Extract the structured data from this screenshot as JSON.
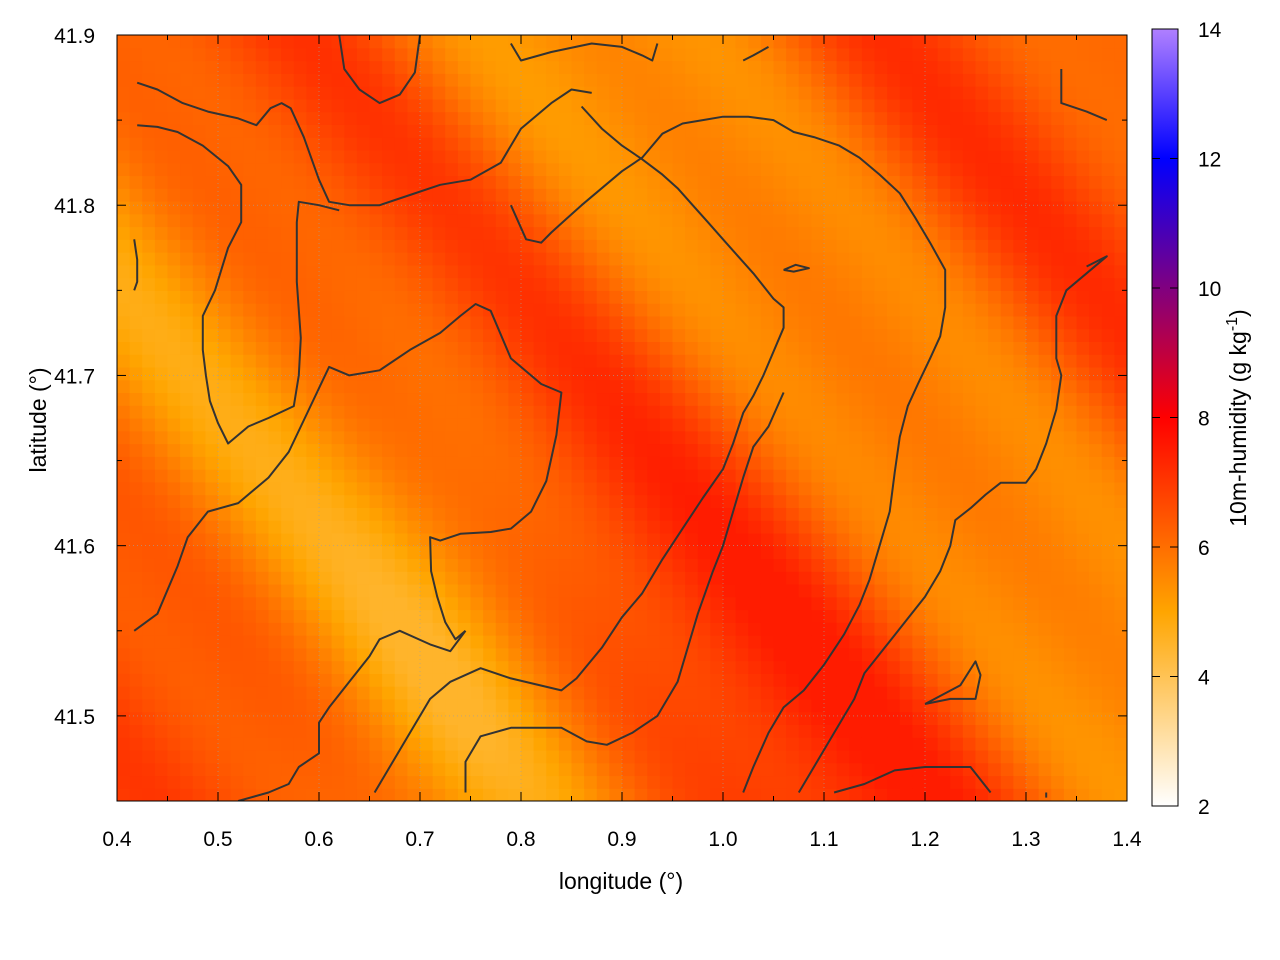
{
  "chart_data": {
    "type": "heatmap",
    "title": "",
    "xlabel": "longitude (°)",
    "ylabel": "latitude (°)",
    "xlim": [
      0.4,
      1.4
    ],
    "ylim": [
      41.45,
      41.9
    ],
    "x_ticks": [
      "0.4",
      "0.5",
      "0.6",
      "0.7",
      "0.8",
      "0.9",
      "1.0",
      "1.1",
      "1.2",
      "1.3",
      "1.4"
    ],
    "y_ticks": [
      "41.5",
      "41.6",
      "41.7",
      "41.8",
      "41.9"
    ],
    "x_tick_values": [
      0.4,
      0.5,
      0.6,
      0.7,
      0.8,
      0.9,
      1.0,
      1.1,
      1.2,
      1.3,
      1.4
    ],
    "y_tick_values": [
      41.5,
      41.6,
      41.7,
      41.8,
      41.9
    ],
    "grid": true,
    "colorbar": {
      "label_main": "10m-humidity (g kg",
      "label_sup": "-1",
      "label_end": ")",
      "range": [
        2,
        14
      ],
      "ticks": [
        "2",
        "4",
        "6",
        "8",
        "10",
        "12",
        "14"
      ],
      "tick_values": [
        2,
        4,
        6,
        8,
        10,
        12,
        14
      ],
      "palette": [
        "#ffffff",
        "#ffa500",
        "#ff0000",
        "#800080",
        "#0000ff",
        "#b080ff"
      ],
      "palette_stops": [
        2,
        5,
        8,
        10,
        12,
        14
      ]
    },
    "field": {
      "typical_range": [
        4.5,
        7.5
      ],
      "description_levels": [
        5,
        6,
        7
      ]
    },
    "contours": [
      [
        [
          0.42,
          41.872
        ],
        [
          0.44,
          41.868
        ],
        [
          0.465,
          41.86
        ],
        [
          0.49,
          41.855
        ],
        [
          0.52,
          41.851
        ],
        [
          0.538,
          41.847
        ],
        [
          0.552,
          41.857
        ],
        [
          0.563,
          41.86
        ],
        [
          0.572,
          41.857
        ],
        [
          0.585,
          41.84
        ],
        [
          0.6,
          41.815
        ],
        [
          0.61,
          41.802
        ],
        [
          0.63,
          41.8
        ],
        [
          0.66,
          41.8
        ],
        [
          0.69,
          41.806
        ],
        [
          0.72,
          41.812
        ],
        [
          0.75,
          41.815
        ],
        [
          0.78,
          41.825
        ],
        [
          0.8,
          41.845
        ],
        [
          0.81,
          41.85
        ],
        [
          0.83,
          41.86
        ],
        [
          0.85,
          41.868
        ],
        [
          0.87,
          41.866
        ]
      ],
      [
        [
          0.42,
          41.847
        ],
        [
          0.44,
          41.846
        ],
        [
          0.46,
          41.843
        ],
        [
          0.485,
          41.835
        ],
        [
          0.51,
          41.823
        ],
        [
          0.523,
          41.812
        ],
        [
          0.523,
          41.79
        ],
        [
          0.51,
          41.775
        ],
        [
          0.497,
          41.75
        ],
        [
          0.485,
          41.735
        ],
        [
          0.485,
          41.715
        ],
        [
          0.488,
          41.7
        ],
        [
          0.492,
          41.685
        ],
        [
          0.5,
          41.672
        ],
        [
          0.51,
          41.66
        ],
        [
          0.53,
          41.67
        ],
        [
          0.55,
          41.675
        ],
        [
          0.575,
          41.682
        ],
        [
          0.58,
          41.7
        ],
        [
          0.582,
          41.722
        ],
        [
          0.578,
          41.755
        ],
        [
          0.578,
          41.79
        ],
        [
          0.58,
          41.802
        ],
        [
          0.6,
          41.8
        ],
        [
          0.62,
          41.797
        ]
      ],
      [
        [
          0.417,
          41.78
        ],
        [
          0.42,
          41.768
        ],
        [
          0.42,
          41.755
        ],
        [
          0.417,
          41.75
        ]
      ],
      [
        [
          0.417,
          41.55
        ],
        [
          0.44,
          41.56
        ],
        [
          0.46,
          41.588
        ],
        [
          0.47,
          41.605
        ],
        [
          0.49,
          41.62
        ],
        [
          0.52,
          41.625
        ],
        [
          0.55,
          41.64
        ],
        [
          0.57,
          41.655
        ],
        [
          0.59,
          41.68
        ],
        [
          0.61,
          41.705
        ],
        [
          0.63,
          41.7
        ],
        [
          0.66,
          41.703
        ],
        [
          0.69,
          41.715
        ],
        [
          0.72,
          41.725
        ],
        [
          0.74,
          41.735
        ],
        [
          0.755,
          41.742
        ],
        [
          0.77,
          41.738
        ],
        [
          0.79,
          41.71
        ],
        [
          0.82,
          41.695
        ],
        [
          0.84,
          41.69
        ],
        [
          0.835,
          41.665
        ],
        [
          0.825,
          41.638
        ],
        [
          0.81,
          41.62
        ],
        [
          0.79,
          41.61
        ],
        [
          0.77,
          41.608
        ],
        [
          0.74,
          41.607
        ],
        [
          0.72,
          41.603
        ],
        [
          0.71,
          41.605
        ],
        [
          0.711,
          41.585
        ],
        [
          0.717,
          41.57
        ],
        [
          0.725,
          41.555
        ],
        [
          0.735,
          41.545
        ],
        [
          0.745,
          41.55
        ]
      ],
      [
        [
          0.745,
          41.55
        ],
        [
          0.73,
          41.538
        ],
        [
          0.71,
          41.542
        ],
        [
          0.68,
          41.55
        ],
        [
          0.66,
          41.545
        ],
        [
          0.65,
          41.535
        ],
        [
          0.63,
          41.52
        ],
        [
          0.61,
          41.505
        ],
        [
          0.6,
          41.496
        ],
        [
          0.6,
          41.478
        ],
        [
          0.58,
          41.47
        ],
        [
          0.57,
          41.46
        ],
        [
          0.55,
          41.455
        ],
        [
          0.52,
          41.45
        ]
      ],
      [
        [
          0.655,
          41.455
        ],
        [
          0.67,
          41.47
        ],
        [
          0.69,
          41.49
        ],
        [
          0.71,
          41.51
        ],
        [
          0.73,
          41.52
        ],
        [
          0.76,
          41.528
        ],
        [
          0.79,
          41.522
        ],
        [
          0.84,
          41.515
        ],
        [
          0.855,
          41.522
        ],
        [
          0.88,
          41.54
        ],
        [
          0.9,
          41.558
        ],
        [
          0.92,
          41.572
        ],
        [
          0.94,
          41.592
        ],
        [
          0.96,
          41.61
        ],
        [
          0.98,
          41.628
        ],
        [
          1.0,
          41.645
        ],
        [
          1.01,
          41.66
        ],
        [
          1.02,
          41.678
        ],
        [
          1.03,
          41.688
        ],
        [
          1.04,
          41.7
        ],
        [
          1.05,
          41.714
        ],
        [
          1.06,
          41.728
        ],
        [
          1.06,
          41.74
        ],
        [
          1.05,
          41.745
        ],
        [
          1.03,
          41.76
        ],
        [
          1.015,
          41.77
        ],
        [
          1.0,
          41.78
        ],
        [
          0.985,
          41.79
        ],
        [
          0.97,
          41.8
        ],
        [
          0.955,
          41.81
        ],
        [
          0.94,
          41.818
        ],
        [
          0.92,
          41.827
        ],
        [
          0.9,
          41.835
        ],
        [
          0.88,
          41.845
        ],
        [
          0.86,
          41.858
        ]
      ],
      [
        [
          0.745,
          41.455
        ],
        [
          0.745,
          41.473
        ],
        [
          0.76,
          41.488
        ],
        [
          0.79,
          41.493
        ],
        [
          0.84,
          41.493
        ],
        [
          0.865,
          41.485
        ],
        [
          0.885,
          41.483
        ],
        [
          0.91,
          41.49
        ],
        [
          0.935,
          41.5
        ],
        [
          0.955,
          41.52
        ],
        [
          0.965,
          41.54
        ],
        [
          0.975,
          41.56
        ],
        [
          0.99,
          41.585
        ],
        [
          1.0,
          41.6
        ],
        [
          1.01,
          41.62
        ],
        [
          1.02,
          41.64
        ],
        [
          1.03,
          41.658
        ],
        [
          1.045,
          41.67
        ],
        [
          1.06,
          41.69
        ]
      ],
      [
        [
          1.02,
          41.455
        ],
        [
          1.03,
          41.47
        ],
        [
          1.045,
          41.49
        ],
        [
          1.06,
          41.505
        ],
        [
          1.08,
          41.515
        ],
        [
          1.1,
          41.53
        ],
        [
          1.12,
          41.548
        ],
        [
          1.135,
          41.565
        ],
        [
          1.145,
          41.58
        ],
        [
          1.155,
          41.6
        ],
        [
          1.165,
          41.62
        ],
        [
          1.17,
          41.643
        ],
        [
          1.175,
          41.664
        ],
        [
          1.183,
          41.682
        ],
        [
          1.193,
          41.695
        ],
        [
          1.205,
          41.71
        ],
        [
          1.215,
          41.723
        ],
        [
          1.22,
          41.74
        ],
        [
          1.22,
          41.762
        ],
        [
          1.205,
          41.778
        ],
        [
          1.19,
          41.793
        ],
        [
          1.175,
          41.807
        ],
        [
          1.155,
          41.818
        ],
        [
          1.135,
          41.828
        ],
        [
          1.115,
          41.835
        ],
        [
          1.09,
          41.84
        ],
        [
          1.07,
          41.843
        ],
        [
          1.05,
          41.85
        ],
        [
          1.025,
          41.852
        ],
        [
          1.0,
          41.852
        ],
        [
          0.98,
          41.85
        ],
        [
          0.96,
          41.848
        ],
        [
          0.94,
          41.842
        ],
        [
          0.92,
          41.828
        ],
        [
          0.9,
          41.82
        ],
        [
          0.88,
          41.81
        ],
        [
          0.86,
          41.8
        ],
        [
          0.845,
          41.792
        ],
        [
          0.83,
          41.784
        ],
        [
          0.82,
          41.778
        ],
        [
          0.805,
          41.78
        ],
        [
          0.79,
          41.8
        ]
      ],
      [
        [
          1.06,
          41.762
        ],
        [
          1.072,
          41.765
        ],
        [
          1.085,
          41.763
        ],
        [
          1.07,
          41.761
        ],
        [
          1.06,
          41.762
        ]
      ],
      [
        [
          1.11,
          41.455
        ],
        [
          1.14,
          41.46
        ],
        [
          1.17,
          41.468
        ],
        [
          1.2,
          41.47
        ],
        [
          1.245,
          41.47
        ],
        [
          1.265,
          41.455
        ]
      ],
      [
        [
          1.2,
          41.507
        ],
        [
          1.225,
          41.51
        ],
        [
          1.25,
          41.51
        ],
        [
          1.255,
          41.524
        ],
        [
          1.25,
          41.532
        ],
        [
          1.235,
          41.518
        ],
        [
          1.2,
          41.507
        ]
      ],
      [
        [
          1.32,
          41.452
        ],
        [
          1.32,
          41.455
        ]
      ],
      [
        [
          1.335,
          41.88
        ],
        [
          1.335,
          41.86
        ],
        [
          1.36,
          41.855
        ],
        [
          1.38,
          41.85
        ]
      ],
      [
        [
          1.36,
          41.764
        ],
        [
          1.38,
          41.77
        ],
        [
          1.36,
          41.76
        ],
        [
          1.34,
          41.75
        ],
        [
          1.33,
          41.735
        ],
        [
          1.33,
          41.71
        ],
        [
          1.335,
          41.7
        ],
        [
          1.33,
          41.68
        ],
        [
          1.32,
          41.66
        ],
        [
          1.31,
          41.645
        ],
        [
          1.3,
          41.637
        ],
        [
          1.275,
          41.637
        ],
        [
          1.26,
          41.63
        ],
        [
          1.245,
          41.622
        ],
        [
          1.23,
          41.615
        ],
        [
          1.225,
          41.6
        ],
        [
          1.215,
          41.585
        ],
        [
          1.2,
          41.57
        ],
        [
          1.18,
          41.555
        ],
        [
          1.16,
          41.54
        ],
        [
          1.14,
          41.525
        ],
        [
          1.13,
          41.51
        ],
        [
          1.11,
          41.49
        ],
        [
          1.09,
          41.47
        ],
        [
          1.075,
          41.455
        ]
      ],
      [
        [
          0.62,
          41.9
        ],
        [
          0.625,
          41.88
        ],
        [
          0.64,
          41.868
        ],
        [
          0.66,
          41.86
        ],
        [
          0.68,
          41.865
        ],
        [
          0.695,
          41.878
        ],
        [
          0.7,
          41.9
        ]
      ],
      [
        [
          0.79,
          41.895
        ],
        [
          0.8,
          41.885
        ],
        [
          0.83,
          41.89
        ],
        [
          0.87,
          41.895
        ],
        [
          0.9,
          41.893
        ],
        [
          0.92,
          41.888
        ],
        [
          0.93,
          41.885
        ],
        [
          0.935,
          41.895
        ]
      ],
      [
        [
          1.02,
          41.885
        ],
        [
          1.03,
          41.888
        ],
        [
          1.045,
          41.893
        ]
      ]
    ]
  }
}
